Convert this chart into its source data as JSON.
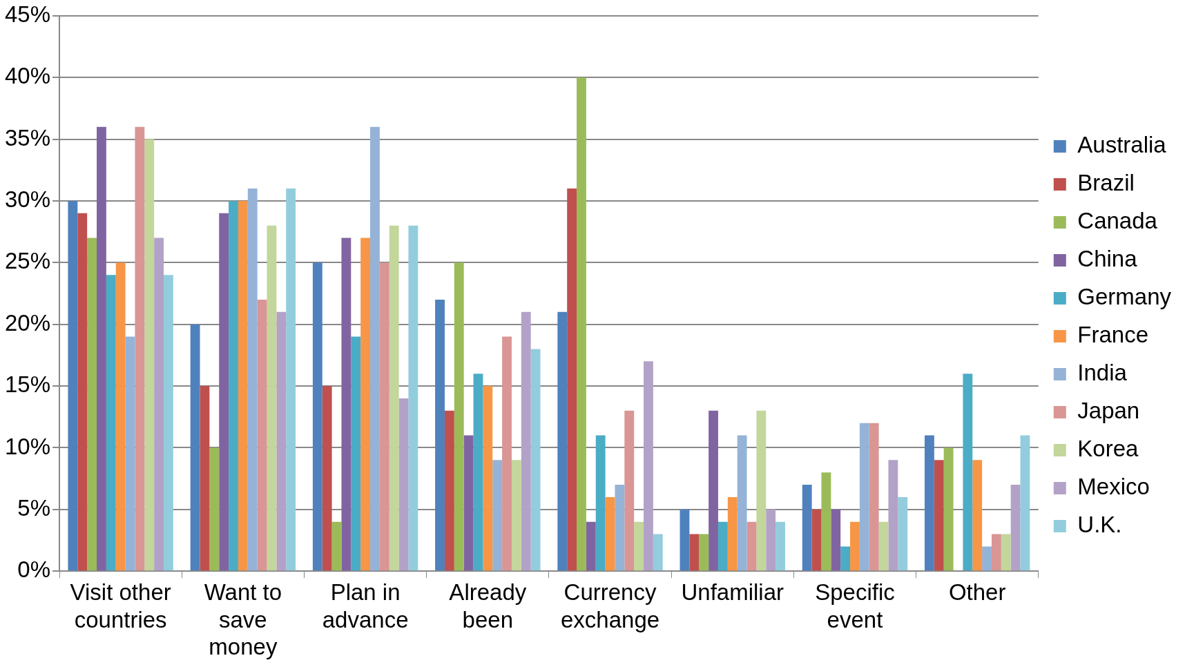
{
  "chart_data": {
    "type": "bar",
    "categories": [
      "Visit other\ncountries",
      "Want to\nsave\nmoney",
      "Plan in\nadvance",
      "Already\nbeen",
      "Currency\nexchange",
      "Unfamiliar",
      "Specific\nevent",
      "Other"
    ],
    "series": [
      {
        "name": "Australia",
        "color": "#4f81bd",
        "values": [
          30,
          20,
          25,
          22,
          21,
          5,
          7,
          11
        ]
      },
      {
        "name": "Brazil",
        "color": "#c0504d",
        "values": [
          29,
          15,
          15,
          13,
          31,
          3,
          5,
          9
        ]
      },
      {
        "name": "Canada",
        "color": "#9bbb59",
        "values": [
          27,
          10,
          4,
          25,
          40,
          3,
          8,
          10
        ]
      },
      {
        "name": "China",
        "color": "#8064a2",
        "values": [
          36,
          29,
          27,
          11,
          4,
          13,
          5,
          0
        ]
      },
      {
        "name": "Germany",
        "color": "#4bacc6",
        "values": [
          24,
          30,
          19,
          16,
          11,
          4,
          2,
          16
        ]
      },
      {
        "name": "France",
        "color": "#f79646",
        "values": [
          25,
          30,
          27,
          15,
          6,
          6,
          4,
          9
        ]
      },
      {
        "name": "India",
        "color": "#95b3d7",
        "values": [
          19,
          31,
          36,
          9,
          7,
          11,
          12,
          2
        ]
      },
      {
        "name": "Japan",
        "color": "#d99694",
        "values": [
          36,
          22,
          25,
          19,
          13,
          4,
          12,
          3
        ]
      },
      {
        "name": "Korea",
        "color": "#c3d69b",
        "values": [
          35,
          28,
          28,
          9,
          4,
          13,
          4,
          3
        ]
      },
      {
        "name": "Mexico",
        "color": "#b3a2c7",
        "values": [
          27,
          21,
          14,
          21,
          17,
          5,
          9,
          7
        ]
      },
      {
        "name": "U.K.",
        "color": "#93cddd",
        "values": [
          24,
          31,
          28,
          18,
          3,
          4,
          6,
          11
        ]
      }
    ],
    "ylim": [
      0,
      45
    ],
    "yticks": [
      {
        "value": 0,
        "label": "0%"
      },
      {
        "value": 5,
        "label": "5%"
      },
      {
        "value": 10,
        "label": "10%"
      },
      {
        "value": 15,
        "label": "15%"
      },
      {
        "value": 20,
        "label": "20%"
      },
      {
        "value": 25,
        "label": "25%"
      },
      {
        "value": 30,
        "label": "30%"
      },
      {
        "value": 35,
        "label": "35%"
      },
      {
        "value": 40,
        "label": "40%"
      },
      {
        "value": 45,
        "label": "45%"
      }
    ],
    "grid": "y",
    "legend": "right"
  }
}
